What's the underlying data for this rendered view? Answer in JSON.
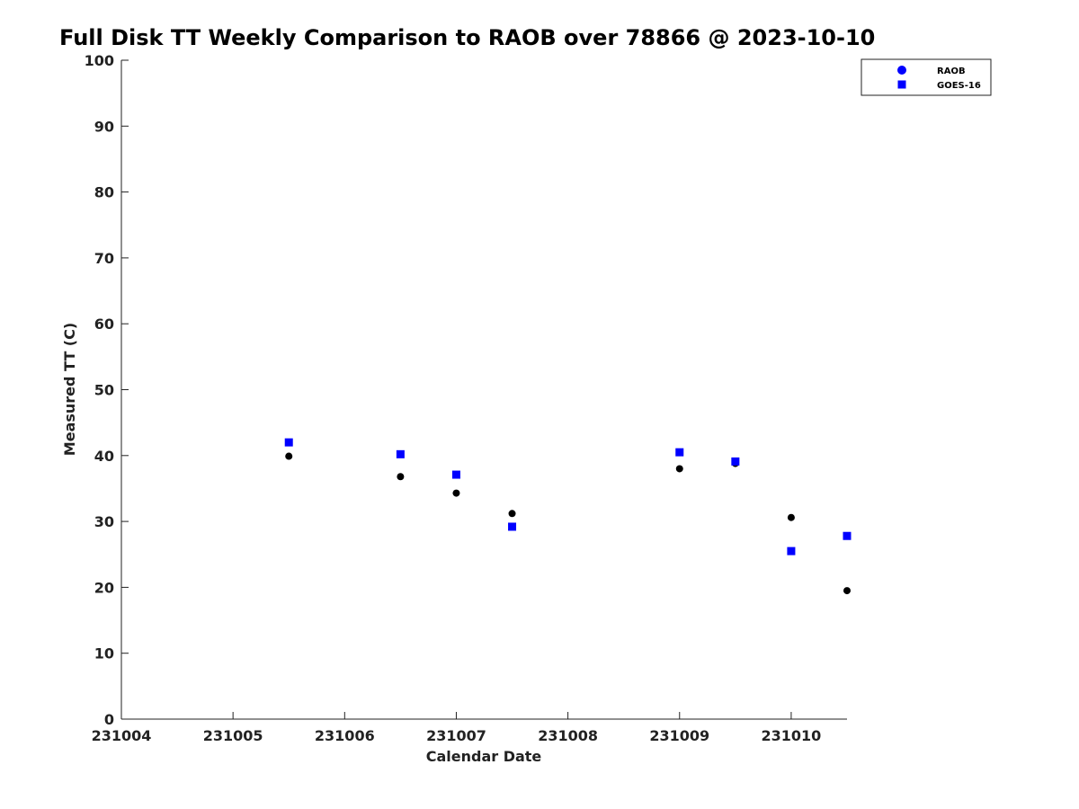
{
  "chart_data": {
    "type": "scatter",
    "title": "Full Disk TT Weekly Comparison to RAOB over 78866 @ 2023-10-10",
    "xlabel": "Calendar Date",
    "ylabel": "Measured TT (C)",
    "xlim": [
      "2023-10-04",
      "2023-10-10T12:00"
    ],
    "ylim": [
      0,
      100
    ],
    "x_ticks": [
      "231004",
      "231005",
      "231006",
      "231007",
      "231008",
      "231009",
      "231010"
    ],
    "y_ticks": [
      0,
      10,
      20,
      30,
      40,
      50,
      60,
      70,
      80,
      90,
      100
    ],
    "grid": false,
    "legend_position": "top-right",
    "series": [
      {
        "name": "RAOB",
        "marker": "circle",
        "color": "#000000",
        "legend_color": "#0000ff",
        "points": [
          {
            "x": "2023-10-05T12:00",
            "y": 39.9
          },
          {
            "x": "2023-10-06T12:00",
            "y": 36.8
          },
          {
            "x": "2023-10-07T00:00",
            "y": 34.3
          },
          {
            "x": "2023-10-07T12:00",
            "y": 31.2
          },
          {
            "x": "2023-10-09T00:00",
            "y": 38.0
          },
          {
            "x": "2023-10-09T12:00",
            "y": 38.8
          },
          {
            "x": "2023-10-10T00:00",
            "y": 30.6
          },
          {
            "x": "2023-10-10T12:00",
            "y": 19.5
          }
        ]
      },
      {
        "name": "GOES-16",
        "marker": "square",
        "color": "#0000ff",
        "points": [
          {
            "x": "2023-10-05T12:00",
            "y": 42.0
          },
          {
            "x": "2023-10-06T12:00",
            "y": 40.2
          },
          {
            "x": "2023-10-07T00:00",
            "y": 37.1
          },
          {
            "x": "2023-10-07T12:00",
            "y": 29.2
          },
          {
            "x": "2023-10-09T00:00",
            "y": 40.5
          },
          {
            "x": "2023-10-09T12:00",
            "y": 39.1
          },
          {
            "x": "2023-10-10T00:00",
            "y": 25.5
          },
          {
            "x": "2023-10-10T12:00",
            "y": 27.8
          }
        ]
      }
    ]
  }
}
